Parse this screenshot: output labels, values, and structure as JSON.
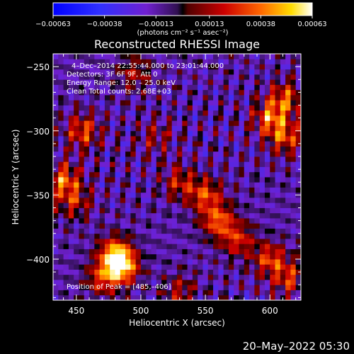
{
  "chart_data": {
    "type": "heatmap",
    "title": "Reconstructed RHESSI Image",
    "xlabel": "Heliocentric X (arcsec)",
    "ylabel": "Heliocentric Y (arcsec)",
    "xlim": [
      432,
      624
    ],
    "ylim": [
      -432,
      -240
    ],
    "x_ticks": [
      450,
      500,
      550,
      600
    ],
    "x_tick_labels": [
      "450",
      "500",
      "550",
      "600"
    ],
    "y_ticks": [
      -250,
      -300,
      -350,
      -400
    ],
    "y_tick_labels": [
      "−250",
      "−300",
      "−350",
      "−400"
    ],
    "grid": false,
    "colorbar": {
      "min": -0.00063,
      "max": 0.00063,
      "ticks": [
        -0.00063,
        -0.00038,
        -0.00013,
        0.00013,
        0.00038,
        0.00063
      ],
      "tick_labels": [
        "−0.00063",
        "−0.00038",
        "−0.00013",
        "0.00013",
        "0.00038",
        "0.00063"
      ],
      "units": "(photons cm⁻² s⁻¹ asec⁻²)"
    },
    "annotations": [
      "4–Dec–2014 22:55:44.000 to 23:01:44.000",
      "Detectors: 3F 6F 9F, Att 0",
      "Energy Range: 12.0 – 25.0 keV",
      "Clean     Total counts: 2.68E+03",
      "Position of Peak = [485,–406]"
    ],
    "sources": [
      {
        "x": 455,
        "y": -300,
        "peak": 0.0004
      },
      {
        "x": 440,
        "y": -338,
        "peak": 0.00045
      },
      {
        "x": 448,
        "y": -355,
        "peak": 0.0003
      },
      {
        "x": 480,
        "y": -395,
        "peak": 0.0005
      },
      {
        "x": 485,
        "y": -406,
        "peak": 0.00063
      },
      {
        "x": 470,
        "y": -415,
        "peak": 0.00035
      },
      {
        "x": 550,
        "y": -350,
        "peak": 0.0004
      },
      {
        "x": 560,
        "y": -370,
        "peak": 0.00045
      },
      {
        "x": 530,
        "y": -340,
        "peak": 0.0003
      },
      {
        "x": 575,
        "y": -385,
        "peak": 0.00035
      },
      {
        "x": 600,
        "y": -290,
        "peak": 0.00045
      },
      {
        "x": 612,
        "y": -275,
        "peak": 0.0004
      },
      {
        "x": 612,
        "y": -305,
        "peak": 0.0004
      },
      {
        "x": 600,
        "y": -400,
        "peak": 0.0004
      },
      {
        "x": 615,
        "y": -415,
        "peak": 0.00035
      },
      {
        "x": 495,
        "y": -255,
        "peak": 0.00025
      },
      {
        "x": 512,
        "y": -305,
        "peak": 0.0002
      },
      {
        "x": 530,
        "y": -425,
        "peak": 0.00025
      }
    ]
  },
  "footer": {
    "timestamp": "20–May–2022 05:30"
  }
}
